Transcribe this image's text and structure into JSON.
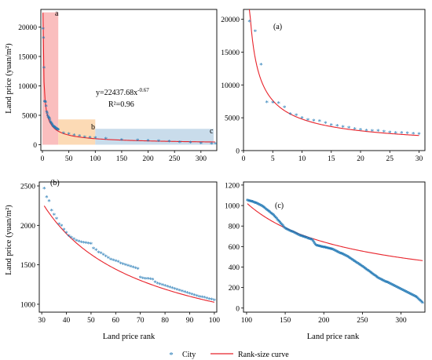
{
  "legend": {
    "city_label": "City",
    "curve_label": "Rank-size curve"
  },
  "colors": {
    "points": "#1f77b4",
    "curve": "#e8232b",
    "shade_a": "#f9b3b3",
    "shade_b": "#fbd4a8",
    "shade_c": "#bfd6e8"
  },
  "chart_data": [
    {
      "id": "overview",
      "type": "scatter",
      "xlabel": "",
      "ylabel": "Land price (yuan/m²)",
      "xlim": [
        -3,
        330
      ],
      "ylim": [
        -1000,
        23000
      ],
      "xticks": [
        0,
        50,
        100,
        150,
        200,
        250,
        300
      ],
      "yticks": [
        0,
        5000,
        10000,
        15000,
        20000
      ],
      "equation": "y=22437.68x",
      "equation_exp": "-0.67",
      "r2": "R²=0.96",
      "curve": {
        "a": 22437.68,
        "b": -0.67
      },
      "regions": [
        {
          "label": "a",
          "x": [
            0,
            30
          ],
          "y": [
            0,
            22500
          ]
        },
        {
          "label": "b",
          "x": [
            30,
            100
          ],
          "y": [
            0,
            4300
          ]
        },
        {
          "label": "c",
          "x": [
            100,
            330
          ],
          "y": [
            0,
            2700
          ]
        }
      ],
      "points": [
        [
          1,
          19600
        ],
        [
          2,
          18100
        ],
        [
          3,
          13000
        ],
        [
          4,
          7300
        ],
        [
          5,
          7200
        ],
        [
          6,
          7150
        ],
        [
          7,
          6500
        ],
        [
          8,
          5500
        ],
        [
          9,
          5300
        ],
        [
          10,
          4900
        ],
        [
          11,
          4600
        ],
        [
          12,
          4500
        ],
        [
          13,
          4400
        ],
        [
          14,
          4150
        ],
        [
          15,
          3800
        ],
        [
          16,
          3700
        ],
        [
          17,
          3550
        ],
        [
          18,
          3400
        ],
        [
          19,
          3250
        ],
        [
          20,
          3100
        ],
        [
          21,
          3000
        ],
        [
          22,
          2950
        ],
        [
          23,
          2900
        ],
        [
          24,
          2800
        ],
        [
          25,
          2700
        ],
        [
          26,
          2650
        ],
        [
          27,
          2600
        ],
        [
          28,
          2550
        ],
        [
          29,
          2500
        ],
        [
          30,
          2450
        ],
        [
          40,
          1850
        ],
        [
          50,
          1720
        ],
        [
          60,
          1560
        ],
        [
          70,
          1380
        ],
        [
          80,
          1220
        ],
        [
          90,
          1130
        ],
        [
          100,
          1045
        ],
        [
          120,
          960
        ],
        [
          150,
          760
        ],
        [
          180,
          640
        ],
        [
          200,
          580
        ],
        [
          220,
          520
        ],
        [
          240,
          440
        ],
        [
          260,
          310
        ],
        [
          280,
          240
        ],
        [
          300,
          160
        ],
        [
          320,
          60
        ],
        [
          327,
          45
        ]
      ]
    },
    {
      "id": "a",
      "panel_label": "(a)",
      "type": "scatter",
      "xlabel": "",
      "ylabel": "",
      "xlim": [
        0,
        31
      ],
      "ylim": [
        0,
        21500
      ],
      "xticks": [
        0,
        5,
        10,
        15,
        20,
        25,
        30
      ],
      "yticks": [
        0,
        5000,
        10000,
        15000,
        20000
      ],
      "x": [
        1,
        2,
        3,
        4,
        5,
        6,
        7,
        8,
        9,
        10,
        11,
        12,
        13,
        14,
        15,
        16,
        17,
        18,
        19,
        20,
        21,
        22,
        23,
        24,
        25,
        26,
        27,
        28,
        29,
        30
      ],
      "y": [
        19600,
        18100,
        13000,
        7300,
        7200,
        7150,
        6500,
        5500,
        5300,
        4900,
        4600,
        4500,
        4400,
        4150,
        3800,
        3700,
        3550,
        3400,
        3250,
        3100,
        3000,
        2950,
        2900,
        2800,
        2700,
        2650,
        2600,
        2550,
        2500,
        2450
      ]
    },
    {
      "id": "b",
      "panel_label": "(b)",
      "type": "scatter",
      "xlabel": "Land price rank",
      "ylabel": "Land price (yuan/m²)",
      "xlim": [
        29,
        101
      ],
      "ylim": [
        900,
        2550
      ],
      "xticks": [
        30,
        40,
        50,
        60,
        70,
        80,
        90,
        100
      ],
      "yticks": [
        1000,
        1500,
        2000,
        2500
      ],
      "x": [
        31,
        32,
        33,
        34,
        35,
        36,
        37,
        38,
        39,
        40,
        41,
        42,
        43,
        44,
        45,
        46,
        47,
        48,
        49,
        50,
        51,
        52,
        53,
        54,
        55,
        56,
        57,
        58,
        59,
        60,
        61,
        62,
        63,
        64,
        65,
        66,
        67,
        68,
        69,
        70,
        71,
        72,
        73,
        74,
        75,
        76,
        77,
        78,
        79,
        80,
        81,
        82,
        83,
        84,
        85,
        86,
        87,
        88,
        89,
        90,
        91,
        92,
        93,
        94,
        95,
        96,
        97,
        98,
        99,
        100
      ],
      "y": [
        2460,
        2350,
        2300,
        2180,
        2130,
        2080,
        2010,
        1990,
        1940,
        1900,
        1860,
        1840,
        1820,
        1800,
        1790,
        1780,
        1775,
        1770,
        1765,
        1760,
        1700,
        1680,
        1650,
        1640,
        1620,
        1600,
        1580,
        1560,
        1550,
        1540,
        1530,
        1510,
        1500,
        1490,
        1480,
        1470,
        1460,
        1450,
        1440,
        1330,
        1320,
        1318,
        1315,
        1312,
        1310,
        1275,
        1260,
        1250,
        1240,
        1230,
        1220,
        1210,
        1200,
        1190,
        1180,
        1170,
        1160,
        1150,
        1140,
        1130,
        1120,
        1110,
        1100,
        1090,
        1085,
        1080,
        1070,
        1060,
        1055,
        1045
      ]
    },
    {
      "id": "c",
      "panel_label": "(c)",
      "type": "scatter",
      "xlabel": "Land price rank",
      "ylabel": "",
      "xlim": [
        96,
        331
      ],
      "ylim": [
        -40,
        1230
      ],
      "xticks": [
        100,
        150,
        200,
        250,
        300
      ],
      "yticks": [
        0,
        200,
        400,
        600,
        800,
        1000,
        1200
      ],
      "anchors": [
        [
          101,
          1045
        ],
        [
          110,
          1025
        ],
        [
          120,
          990
        ],
        [
          135,
          900
        ],
        [
          150,
          770
        ],
        [
          170,
          700
        ],
        [
          185,
          660
        ],
        [
          190,
          605
        ],
        [
          210,
          570
        ],
        [
          230,
          500
        ],
        [
          250,
          400
        ],
        [
          270,
          290
        ],
        [
          290,
          215
        ],
        [
          310,
          140
        ],
        [
          320,
          100
        ],
        [
          328,
          45
        ]
      ]
    }
  ]
}
